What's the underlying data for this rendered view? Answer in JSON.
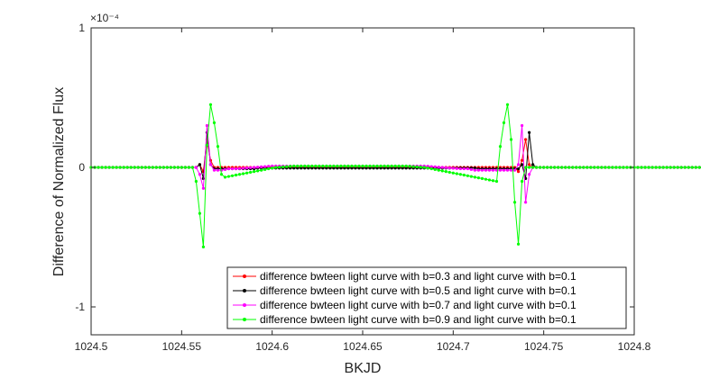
{
  "chart_data": {
    "type": "line",
    "xlabel": "BKJD",
    "ylabel": "Difference of Normalized Flux",
    "xlim": [
      1024.5,
      1024.8
    ],
    "ylim": [
      -1.2,
      1.0
    ],
    "y_exponent_label": "×10⁻⁴",
    "x_ticks": [
      "1024.5",
      "1024.55",
      "1024.6",
      "1024.65",
      "1024.7",
      "1024.75",
      "1024.8"
    ],
    "x_tick_values": [
      1024.5,
      1024.55,
      1024.6,
      1024.65,
      1024.7,
      1024.75,
      1024.8
    ],
    "y_ticks": [
      "1",
      "0",
      "-1"
    ],
    "y_tick_values": [
      1,
      0,
      -1
    ],
    "legend_position": "bottom-right",
    "x_start": 1024.5,
    "x_step": 0.002,
    "series": [
      {
        "name": "difference bwteen light curve with b=0.3 and light curve with b=0.1",
        "color": "#ff0000",
        "values": [
          0,
          0,
          0,
          0,
          0,
          0,
          0,
          0,
          0,
          0,
          0,
          0,
          0,
          0,
          0,
          0,
          0,
          0,
          0,
          0,
          0,
          0,
          0,
          0,
          0,
          0,
          0,
          0,
          0,
          0,
          0.02,
          -0.03,
          0.2,
          0.05,
          0,
          0,
          0,
          0,
          0,
          0,
          0,
          0,
          0,
          0,
          0,
          0,
          0,
          0,
          0,
          0,
          0,
          0,
          0,
          0,
          0,
          0,
          0,
          0,
          0,
          0,
          0,
          0,
          0,
          0,
          0,
          0,
          0,
          0,
          0,
          0,
          0,
          0,
          0,
          0,
          0,
          0,
          0,
          0,
          0,
          0,
          0,
          0,
          0,
          0,
          0,
          0,
          0,
          0,
          0,
          0,
          0,
          0,
          0,
          0,
          0,
          0,
          0,
          0,
          0,
          0,
          0,
          0,
          0,
          0,
          0,
          0,
          0,
          0,
          0,
          0,
          0,
          0,
          0,
          0,
          0,
          0,
          0,
          0,
          -0.03,
          0.05,
          0.2,
          0.02,
          0,
          0,
          0,
          0,
          0,
          0,
          0,
          0,
          0,
          0,
          0,
          0,
          0,
          0,
          0,
          0,
          0,
          0,
          0,
          0,
          0,
          0,
          0,
          0,
          0,
          0,
          0,
          0,
          0,
          0,
          0,
          0,
          0,
          0,
          0,
          0,
          0,
          0,
          0,
          0,
          0,
          0,
          0,
          0,
          0,
          0,
          0,
          0,
          0
        ]
      },
      {
        "name": "difference bwteen light curve with b=0.5 and light curve with b=0.1",
        "color": "#000000",
        "values": [
          0,
          0,
          0,
          0,
          0,
          0,
          0,
          0,
          0,
          0,
          0,
          0,
          0,
          0,
          0,
          0,
          0,
          0,
          0,
          0,
          0,
          0,
          0,
          0,
          0,
          0,
          0,
          0,
          0,
          0,
          0.02,
          -0.08,
          0.25,
          0.02,
          -0.01,
          -0.01,
          -0.01,
          -0.01,
          -0.01,
          -0.01,
          -0.01,
          -0.01,
          -0.01,
          -0.01,
          -0.01,
          -0.01,
          -0.005,
          -0.005,
          -0.005,
          -0.005,
          -0.005,
          -0.005,
          -0.005,
          -0.005,
          -0.005,
          -0.005,
          -0.005,
          -0.005,
          -0.005,
          -0.005,
          -0.005,
          -0.005,
          -0.005,
          -0.005,
          -0.005,
          -0.005,
          -0.005,
          -0.005,
          -0.005,
          -0.005,
          -0.005,
          -0.005,
          -0.005,
          -0.005,
          -0.005,
          -0.005,
          -0.005,
          -0.005,
          -0.005,
          -0.005,
          -0.005,
          -0.005,
          -0.005,
          -0.005,
          -0.005,
          -0.005,
          -0.005,
          -0.005,
          -0.005,
          -0.005,
          -0.005,
          -0.005,
          -0.005,
          -0.005,
          -0.005,
          -0.005,
          -0.005,
          -0.005,
          -0.005,
          -0.005,
          -0.005,
          -0.005,
          -0.005,
          -0.005,
          -0.005,
          -0.005,
          -0.005,
          -0.01,
          -0.01,
          -0.01,
          -0.01,
          -0.01,
          -0.01,
          -0.01,
          -0.01,
          -0.01,
          -0.01,
          -0.01,
          -0.01,
          0.02,
          -0.08,
          0.25,
          0.02,
          0,
          0,
          0,
          0,
          0,
          0,
          0,
          0,
          0,
          0,
          0,
          0,
          0,
          0,
          0,
          0,
          0,
          0,
          0,
          0,
          0,
          0,
          0,
          0,
          0,
          0,
          0,
          0,
          0,
          0,
          0,
          0,
          0,
          0,
          0,
          0,
          0,
          0,
          0,
          0,
          0,
          0,
          0,
          0,
          0,
          0,
          0,
          0,
          0,
          0
        ]
      },
      {
        "name": "difference bwteen light curve with b=0.7 and light curve with b=0.1",
        "color": "#ff00ff",
        "values": [
          0,
          0,
          0,
          0,
          0,
          0,
          0,
          0,
          0,
          0,
          0,
          0,
          0,
          0,
          0,
          0,
          0,
          0,
          0,
          0,
          0,
          0,
          0,
          0,
          0,
          0,
          0,
          0,
          0,
          0,
          -0.05,
          -0.15,
          0.3,
          0.02,
          -0.02,
          -0.02,
          -0.02,
          -0.015,
          -0.01,
          -0.01,
          -0.01,
          -0.008,
          -0.006,
          -0.004,
          -0.002,
          0,
          0.002,
          0.004,
          0.006,
          0.008,
          0.01,
          0.01,
          0.01,
          0.01,
          0.01,
          0.01,
          0.01,
          0.01,
          0.01,
          0.01,
          0.01,
          0.01,
          0.01,
          0.01,
          0.01,
          0.01,
          0.01,
          0.01,
          0.01,
          0.01,
          0.01,
          0.01,
          0.01,
          0.01,
          0.01,
          0.01,
          0.01,
          0.01,
          0.01,
          0.01,
          0.01,
          0.01,
          0.01,
          0.01,
          0.01,
          0.01,
          0.01,
          0.01,
          0.01,
          0.01,
          0.01,
          0.01,
          0.01,
          0.008,
          0.006,
          0.004,
          0.002,
          0,
          -0.002,
          -0.004,
          -0.006,
          -0.008,
          -0.01,
          -0.01,
          -0.01,
          -0.015,
          -0.02,
          -0.02,
          -0.02,
          -0.02,
          -0.02,
          -0.02,
          -0.02,
          -0.02,
          -0.02,
          -0.02,
          -0.02,
          -0.02,
          0.02,
          0.3,
          -0.25,
          -0.05,
          0,
          0,
          0,
          0,
          0,
          0,
          0,
          0,
          0,
          0,
          0,
          0,
          0,
          0,
          0,
          0,
          0,
          0,
          0,
          0,
          0,
          0,
          0,
          0,
          0,
          0,
          0,
          0,
          0,
          0,
          0,
          0,
          0,
          0,
          0,
          0,
          0,
          0,
          0,
          0,
          0,
          0,
          0,
          0,
          0,
          0,
          0,
          0,
          0
        ]
      },
      {
        "name": "difference bwteen light curve with b=0.9 and light curve with b=0.1",
        "color": "#00ff00",
        "values": [
          0,
          0,
          0,
          0,
          0,
          0,
          0,
          0,
          0,
          0,
          0,
          0,
          0,
          0,
          0,
          0,
          0,
          0,
          0,
          0,
          0,
          0,
          0,
          0,
          0,
          0,
          0,
          0,
          0,
          -0.1,
          -0.33,
          -0.57,
          0.16,
          0.45,
          0.32,
          0.15,
          -0.05,
          -0.07,
          -0.065,
          -0.06,
          -0.055,
          -0.05,
          -0.045,
          -0.04,
          -0.035,
          -0.03,
          -0.025,
          -0.02,
          -0.015,
          -0.01,
          -0.005,
          0,
          0.002,
          0.004,
          0.006,
          0.008,
          0.01,
          0.01,
          0.01,
          0.01,
          0.01,
          0.01,
          0.01,
          0.01,
          0.01,
          0.01,
          0.01,
          0.01,
          0.01,
          0.01,
          0.01,
          0.01,
          0.01,
          0.01,
          0.01,
          0.01,
          0.01,
          0.01,
          0.01,
          0.01,
          0.01,
          0.01,
          0.01,
          0.01,
          0.01,
          0.01,
          0.01,
          0.01,
          0.008,
          0.006,
          0.004,
          0.002,
          0,
          -0.005,
          -0.01,
          -0.015,
          -0.02,
          -0.025,
          -0.03,
          -0.035,
          -0.04,
          -0.045,
          -0.05,
          -0.055,
          -0.06,
          -0.065,
          -0.07,
          -0.075,
          -0.08,
          -0.085,
          -0.09,
          -0.095,
          -0.1,
          0.15,
          0.32,
          0.45,
          0.2,
          -0.25,
          -0.55,
          -0.1,
          0,
          0,
          0,
          0,
          0,
          0,
          0,
          0,
          0,
          0,
          0,
          0,
          0,
          0,
          0,
          0,
          0,
          0,
          0,
          0,
          0,
          0,
          0,
          0,
          0,
          0,
          0,
          0,
          0,
          0,
          0,
          0,
          0,
          0,
          0,
          0,
          0,
          0,
          0,
          0,
          0,
          0,
          0,
          0,
          0,
          0,
          0,
          0,
          0,
          0,
          0
        ]
      }
    ]
  }
}
